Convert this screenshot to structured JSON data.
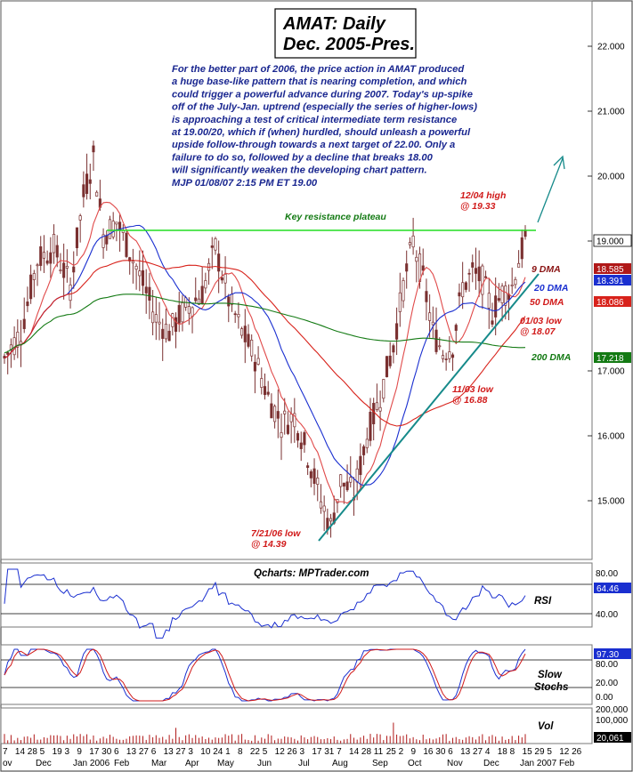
{
  "chart_data": [
    {
      "type": "candlestick",
      "title": "AMAT: Daily",
      "subtitle": "Dec. 2005-Pres.",
      "commentary": [
        "For the better part of 2006, the price action in AMAT produced",
        "a huge base-like pattern that is nearing completion, and which",
        "could trigger a powerful advance during 2007. Today's up-spike",
        "off of the July-Jan. uptrend (especially the series of higher-lows)",
        "is approaching a test of critical intermediate term resistance",
        "at 19.00/20, which if (when) hurdled, should unleash a powerful",
        "upside follow-through towards a next target of 22.00. Only a",
        "failure to do so, followed by a decline that breaks 18.00",
        "will significantly weaken the developing chart pattern.",
        "MJP  01/08/07  2:15 PM ET  19.00"
      ],
      "ylim": [
        14.2,
        22.35
      ],
      "y_ticks": [
        "22.000",
        "21.000",
        "20.000",
        "19.000",
        "17.000",
        "16.000",
        "15.000"
      ],
      "last_values": {
        "price": "19.000",
        "dma9": "18.585",
        "dma20": "18.391",
        "dma50": "18.086",
        "dma200": "17.218"
      },
      "price_anchors": [
        [
          0,
          17.2
        ],
        [
          5,
          17.6
        ],
        [
          10,
          18.7
        ],
        [
          15,
          18.9
        ],
        [
          20,
          18.3
        ],
        [
          24,
          19.7
        ],
        [
          27,
          20.3
        ],
        [
          30,
          19.1
        ],
        [
          34,
          19.3
        ],
        [
          40,
          18.6
        ],
        [
          46,
          17.8
        ],
        [
          50,
          17.6
        ],
        [
          54,
          17.9
        ],
        [
          60,
          18.2
        ],
        [
          64,
          18.9
        ],
        [
          68,
          18.1
        ],
        [
          72,
          17.6
        ],
        [
          76,
          17.2
        ],
        [
          80,
          16.6
        ],
        [
          84,
          16.2
        ],
        [
          88,
          16.3
        ],
        [
          92,
          15.7
        ],
        [
          96,
          15.0
        ],
        [
          99,
          14.6
        ],
        [
          102,
          15.3
        ],
        [
          106,
          15.1
        ],
        [
          110,
          16.0
        ],
        [
          114,
          16.6
        ],
        [
          118,
          17.4
        ],
        [
          121,
          18.3
        ],
        [
          124,
          19.0
        ],
        [
          127,
          18.4
        ],
        [
          130,
          17.6
        ],
        [
          133,
          17.3
        ],
        [
          136,
          17.4
        ],
        [
          139,
          18.3
        ],
        [
          142,
          18.5
        ],
        [
          145,
          18.4
        ],
        [
          148,
          17.9
        ],
        [
          151,
          18.2
        ],
        [
          154,
          18.3
        ],
        [
          156,
          18.7
        ],
        [
          158,
          19.0
        ]
      ],
      "series": [
        {
          "name": "9 DMA",
          "color": "#b01818"
        },
        {
          "name": "20 DMA",
          "color": "#1a2fd0"
        },
        {
          "name": "50 DMA",
          "color": "#d8221b"
        },
        {
          "name": "200 DMA",
          "color": "#137a13"
        }
      ],
      "annotations": {
        "resistance": "Key resistance plateau",
        "high": [
          "12/04 high",
          "@ 19.33"
        ],
        "low1": [
          "7/21/06 low",
          "@ 14.39"
        ],
        "low2": [
          "11/03 low",
          "@ 16.88"
        ],
        "low3": [
          "01/03 low",
          "@ 18.07"
        ]
      },
      "x_day_labels": [
        "7",
        "14",
        "28",
        "5",
        "19",
        "3",
        "9",
        "17",
        "30",
        "6",
        "13",
        "27",
        "6",
        "13",
        "27",
        "3",
        "10",
        "24",
        "1",
        "8",
        "22",
        "5",
        "12",
        "26",
        "3",
        "17",
        "31",
        "7",
        "14",
        "28",
        "11",
        "25",
        "2",
        "9",
        "16",
        "30",
        "6",
        "13",
        "27",
        "4",
        "18",
        "8",
        "15",
        "29",
        "5",
        "12",
        "26"
      ],
      "x_month_labels": [
        "ov",
        "Dec",
        "Jan 2006",
        "Feb",
        "Mar",
        "Apr",
        "May",
        "Jun",
        "Jul",
        "Aug",
        "Sep",
        "Oct",
        "Nov",
        "Dec",
        "Jan 2007",
        "Feb"
      ]
    },
    {
      "type": "line",
      "label": "RSI",
      "source": "Qcharts: MPTrader.com",
      "y_ticks": [
        "80.00",
        "40.00"
      ],
      "last_value": "64.46"
    },
    {
      "type": "line",
      "label": "Slow Stochs",
      "y_ticks": [
        "80.00",
        "20.00",
        "0.00"
      ],
      "last_value": "97.30"
    },
    {
      "type": "bar",
      "label": "Vol",
      "y_ticks": [
        "200,000",
        "100,000"
      ],
      "last_value": "20,061"
    }
  ],
  "colors": {
    "up": "#1a2fd0",
    "down": "#b01818",
    "candle": "#7a3030",
    "trendline": "#168a8a",
    "resistance": "#22dd22",
    "arrow": "#168a8a",
    "commentary": "#1a2790",
    "annotation_red": "#d11a1a",
    "annotation_blue": "#1a2fd0",
    "annotation_green": "#137a13",
    "annotation_dark": "#8a1313"
  }
}
